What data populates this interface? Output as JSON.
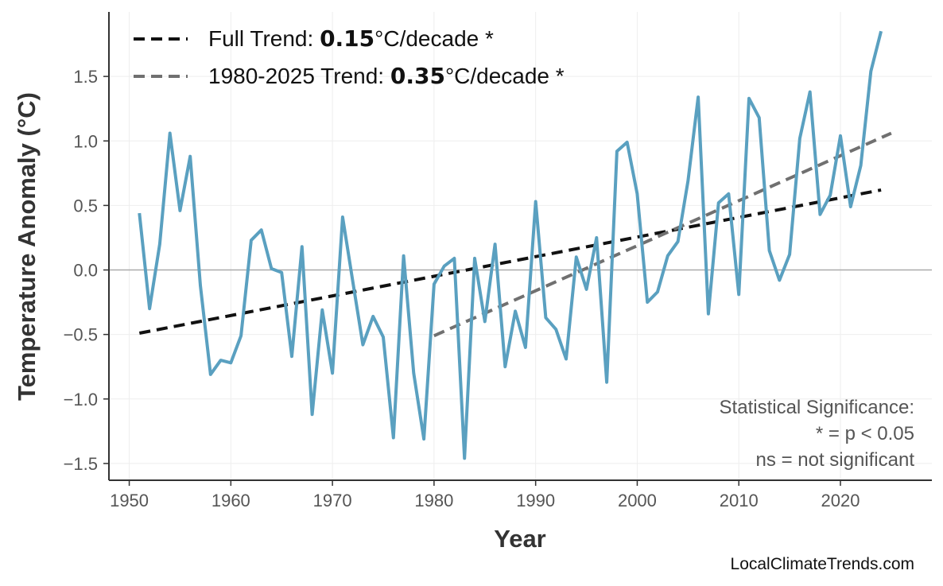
{
  "chart_data": {
    "type": "line",
    "title": "",
    "xlabel": "Year",
    "ylabel": "Temperature Anomaly (°C)",
    "xlim": [
      1948,
      2029
    ],
    "ylim": [
      -1.63,
      2.0
    ],
    "xticks": [
      1950,
      1960,
      1970,
      1980,
      1990,
      2000,
      2010,
      2020
    ],
    "yticks": [
      -1.5,
      -1.0,
      -0.5,
      0.0,
      0.5,
      1.0,
      1.5
    ],
    "ytick_labels": [
      "−1.5",
      "−1.0",
      "−0.5",
      "0.0",
      "0.5",
      "1.0",
      "1.5"
    ],
    "grid": true,
    "legend_position": "top-left",
    "x": [
      1951,
      1952,
      1953,
      1954,
      1955,
      1956,
      1957,
      1958,
      1959,
      1960,
      1961,
      1962,
      1963,
      1964,
      1965,
      1966,
      1967,
      1968,
      1969,
      1970,
      1971,
      1972,
      1973,
      1974,
      1975,
      1976,
      1977,
      1978,
      1979,
      1980,
      1981,
      1982,
      1983,
      1984,
      1985,
      1986,
      1987,
      1988,
      1989,
      1990,
      1991,
      1992,
      1993,
      1994,
      1995,
      1996,
      1997,
      1998,
      1999,
      2000,
      2001,
      2002,
      2003,
      2004,
      2005,
      2006,
      2007,
      2008,
      2009,
      2010,
      2011,
      2012,
      2013,
      2014,
      2015,
      2016,
      2017,
      2018,
      2019,
      2020,
      2021,
      2022,
      2023,
      2024
    ],
    "series": [
      {
        "values": [
          0.44,
          -0.3,
          0.2,
          1.06,
          0.46,
          0.88,
          -0.12,
          -0.81,
          -0.7,
          -0.72,
          -0.51,
          0.23,
          0.31,
          0.01,
          -0.02,
          -0.67,
          0.18,
          -1.12,
          -0.31,
          -0.8,
          0.41,
          -0.09,
          -0.58,
          -0.36,
          -0.52,
          -1.3,
          0.11,
          -0.8,
          -1.31,
          -0.11,
          0.03,
          0.09,
          -1.46,
          0.09,
          -0.4,
          0.2,
          -0.75,
          -0.32,
          -0.6,
          0.53,
          -0.37,
          -0.46,
          -0.69,
          0.1,
          -0.15,
          0.25,
          -0.87,
          0.92,
          0.99,
          0.59,
          -0.25,
          -0.17,
          0.11,
          0.22,
          0.69,
          1.34,
          -0.34,
          0.52,
          0.59,
          -0.19,
          1.33,
          1.18,
          0.15,
          -0.08,
          0.12,
          1.02,
          1.38,
          0.43,
          0.58,
          1.04,
          0.49,
          0.81,
          1.54,
          1.85
        ],
        "color": "#5aa0c0"
      }
    ],
    "trends": [
      {
        "label_prefix": "Full Trend: ",
        "rate": "0.15",
        "label_suffix": "°C/decade *",
        "x": [
          1951,
          2024
        ],
        "y": [
          -0.49,
          0.62
        ],
        "color": "#111111"
      },
      {
        "label_prefix": "1980-2025 Trend: ",
        "rate": "0.35",
        "label_suffix": "°C/decade *",
        "x": [
          1980,
          2025
        ],
        "y": [
          -0.51,
          1.06
        ],
        "color": "#707070"
      }
    ],
    "annotation": [
      "Statistical Significance:",
      "* = p < 0.05",
      "ns = not significant"
    ],
    "source": "LocalClimateTrends.com"
  }
}
